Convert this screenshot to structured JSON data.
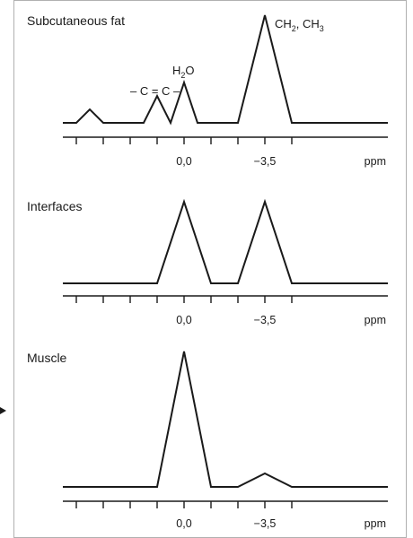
{
  "panels": [
    {
      "title": "Subcutaneous fat",
      "x_axis": {
        "tick_labels": [
          "0,0",
          "−3,5"
        ],
        "unit": "ppm"
      },
      "annotations": {
        "ch_label_part1": "CH",
        "ch_label_sub1": "2",
        "ch_label_part2": ", CH",
        "ch_label_sub2": "3",
        "h2o_part1": "H",
        "h2o_sub": "2",
        "h2o_part2": "O",
        "cc_label": "– C = C –"
      }
    },
    {
      "title": "Interfaces",
      "x_axis": {
        "tick_labels": [
          "0,0",
          "−3,5"
        ],
        "unit": "ppm"
      }
    },
    {
      "title": "Muscle",
      "x_axis": {
        "tick_labels": [
          "0,0",
          "−3,5"
        ],
        "unit": "ppm"
      }
    }
  ],
  "colors": {
    "line": "#1a1a1a",
    "frame": "#b0b0b0",
    "arrow": "#1a1a1a",
    "background": "#ffffff"
  },
  "icons": {
    "pointer": "arrow-right-icon"
  }
}
